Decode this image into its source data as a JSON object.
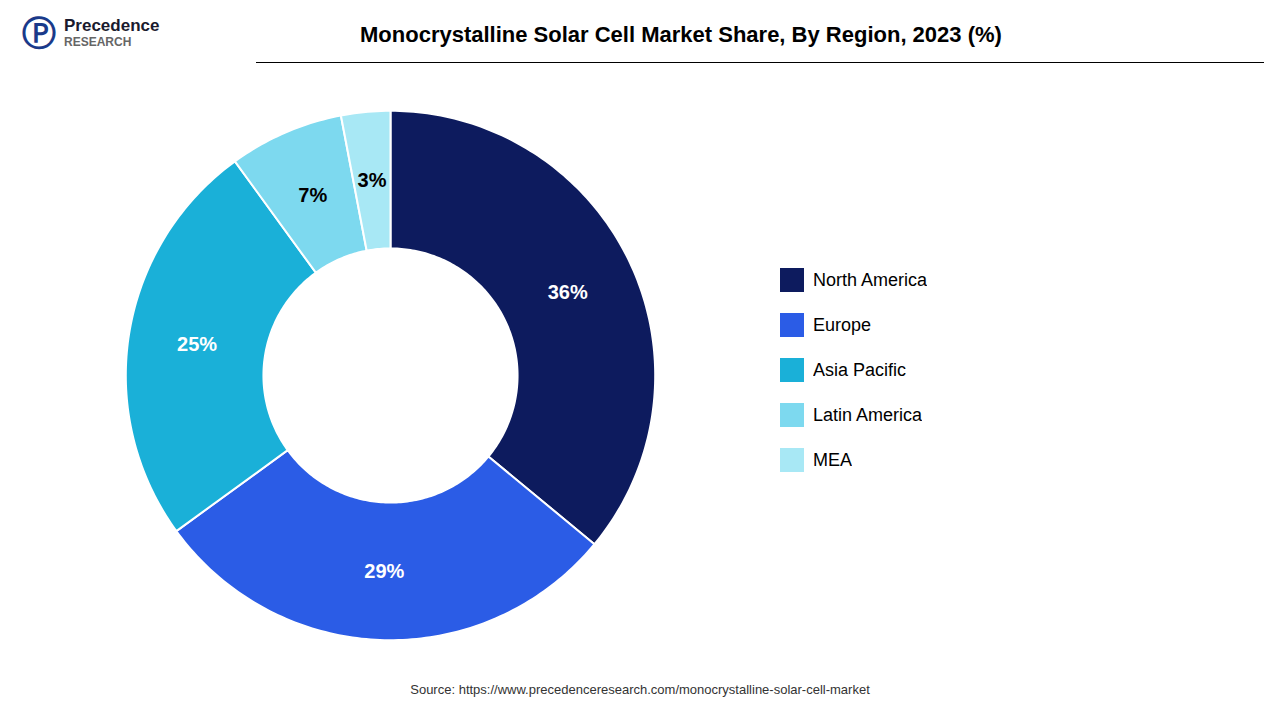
{
  "chart_data": {
    "type": "pie",
    "title": "Monocrystalline Solar Cell Market Share, By Region, 2023 (%)",
    "categories": [
      "North America",
      "Europe",
      "Asia Pacific",
      "Latin America",
      "MEA"
    ],
    "values": [
      36,
      29,
      25,
      7,
      3
    ],
    "value_labels": [
      "36%",
      "29%",
      "25%",
      "7%",
      "3%"
    ],
    "colors": [
      "#0d1b5e",
      "#2b5ce6",
      "#1ab0d8",
      "#7dd9ef",
      "#a8e8f5"
    ],
    "data_labels": true,
    "legend": "right",
    "annotations": [
      "Ⓟ",
      "Precedence",
      "RESEARCH",
      "Source: https://www.precedenceresearch.com/monocrystalline-solar-cell-market"
    ]
  }
}
